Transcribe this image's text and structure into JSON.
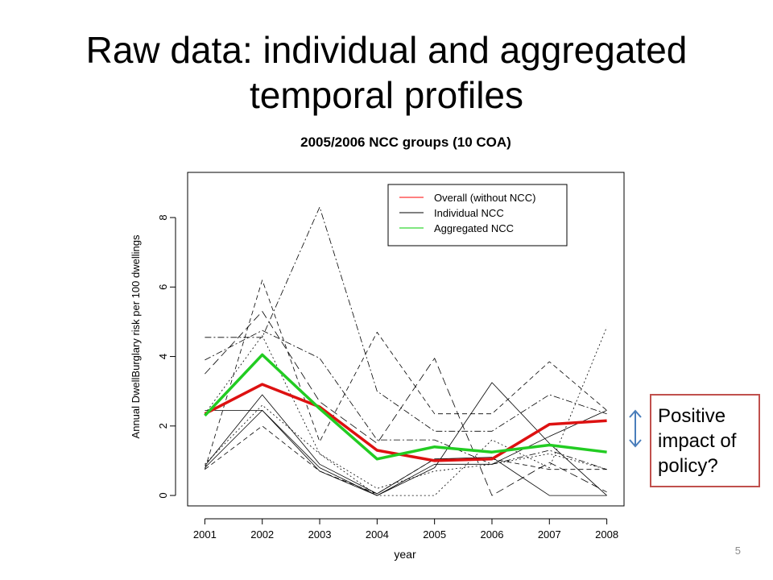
{
  "slide": {
    "title": "Raw data: individual and aggregated temporal profiles",
    "callout": "Positive impact of policy?",
    "page_number": "5"
  },
  "chart_data": {
    "type": "line",
    "title": "2005/2006 NCC groups (10 COA)",
    "xlabel": "year",
    "ylabel": "Annual DwellBurglary risk per 100 dwellings",
    "x": [
      2001,
      2002,
      2003,
      2004,
      2005,
      2006,
      2007,
      2008
    ],
    "xlim": [
      2000.7,
      2008.3
    ],
    "ylim": [
      -0.3,
      9.3
    ],
    "y_ticks": [
      0,
      2,
      4,
      6,
      8
    ],
    "grid": false,
    "legend_position": "top-right",
    "legend": [
      {
        "label": "Overall (without NCC)",
        "color": "#ff0000"
      },
      {
        "label": "Individual NCC",
        "color": "#000000"
      },
      {
        "label": "Aggregated NCC",
        "color": "#00cc00"
      }
    ],
    "series": [
      {
        "name": "Overall (without NCC)",
        "color": "#dd1111",
        "width": 3.5,
        "dash": "",
        "values": [
          2.35,
          3.2,
          2.55,
          1.3,
          1.0,
          1.05,
          2.05,
          2.15
        ]
      },
      {
        "name": "Aggregated NCC",
        "color": "#22cc22",
        "width": 3.5,
        "dash": "",
        "values": [
          2.3,
          4.05,
          2.5,
          1.05,
          1.4,
          1.25,
          1.45,
          1.25
        ]
      },
      {
        "color": "#000000",
        "width": 0.8,
        "dash": "",
        "values": [
          0.8,
          2.45,
          0.8,
          0.0,
          0.8,
          3.25,
          1.5,
          0.0
        ]
      },
      {
        "color": "#000000",
        "width": 0.8,
        "dash": "",
        "values": [
          0.85,
          2.9,
          0.9,
          0.05,
          1.05,
          1.1,
          0.0,
          0.0
        ]
      },
      {
        "color": "#000000",
        "width": 0.8,
        "dash": "",
        "values": [
          2.45,
          2.45,
          0.7,
          0.0,
          0.9,
          0.9,
          1.7,
          2.45
        ]
      },
      {
        "color": "#000000",
        "width": 0.8,
        "dash": "6,4",
        "values": [
          0.75,
          2.0,
          0.7,
          0.05,
          1.05,
          1.05,
          0.75,
          0.75
        ]
      },
      {
        "color": "#000000",
        "width": 0.8,
        "dash": "6,4",
        "values": [
          0.75,
          6.2,
          1.55,
          4.7,
          2.35,
          2.35,
          3.85,
          2.45
        ]
      },
      {
        "color": "#000000",
        "width": 0.8,
        "dash": "2,3",
        "values": [
          2.35,
          4.6,
          1.2,
          0.0,
          0.0,
          1.6,
          0.8,
          4.85
        ]
      },
      {
        "color": "#000000",
        "width": 0.8,
        "dash": "2,3",
        "values": [
          0.9,
          2.6,
          1.2,
          0.2,
          0.7,
          0.9,
          1.2,
          0.75
        ]
      },
      {
        "color": "#000000",
        "width": 0.8,
        "dash": "8,3,2,3",
        "values": [
          4.55,
          4.55,
          8.3,
          3.0,
          1.85,
          1.85,
          2.9,
          2.35
        ]
      },
      {
        "color": "#000000",
        "width": 0.8,
        "dash": "8,3,2,3",
        "values": [
          3.9,
          4.75,
          3.95,
          1.6,
          1.6,
          0.9,
          1.3,
          0.75
        ]
      },
      {
        "color": "#000000",
        "width": 0.8,
        "dash": "10,5",
        "values": [
          3.5,
          5.3,
          2.7,
          1.5,
          3.95,
          0.0,
          0.95,
          0.1
        ]
      }
    ]
  }
}
